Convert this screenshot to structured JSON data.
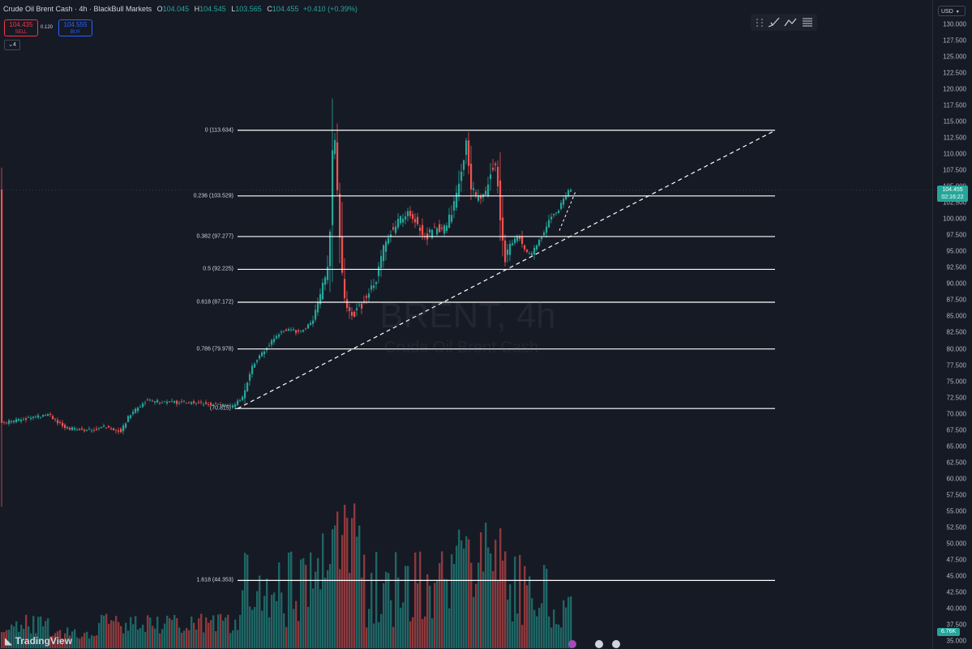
{
  "header": {
    "symbol": "Crude Oil Brent Cash · 4h · BlackBull Markets",
    "o_label": "O",
    "o_value": "104.045",
    "h_label": "H",
    "h_value": "104.545",
    "l_label": "L",
    "l_value": "103.565",
    "c_label": "C",
    "c_value": "104.455",
    "change": "+0.410 (+0.39%)"
  },
  "trade": {
    "sell_price": "104.435",
    "sell_label": "SELL",
    "spread": "0.120",
    "buy_price": "104.555",
    "buy_label": "BUY"
  },
  "indicators_count": "4",
  "currency": "USD",
  "watermark": {
    "symbol": "BRENT, 4h",
    "description": "Crude Oil Brent Cash"
  },
  "price_axis": {
    "ticks": [
      "130.000",
      "127.500",
      "125.000",
      "122.500",
      "120.000",
      "117.500",
      "115.000",
      "112.500",
      "110.000",
      "107.500",
      "105.000",
      "102.500",
      "100.000",
      "97.500",
      "95.000",
      "92.500",
      "90.000",
      "87.500",
      "85.000",
      "82.500",
      "80.000",
      "77.500",
      "75.000",
      "72.500",
      "70.000",
      "67.500",
      "65.000",
      "62.500",
      "60.000",
      "57.500",
      "55.000",
      "52.500",
      "50.000",
      "47.500",
      "45.000",
      "42.500",
      "40.000",
      "37.500",
      "35.000"
    ],
    "last_price": "104.455",
    "countdown": "02:16:22",
    "volume_label": "6.76K"
  },
  "fibonacci": [
    {
      "label": "0 (113.634)",
      "price": 113.634
    },
    {
      "label": "0.236 (103.529)",
      "price": 103.529
    },
    {
      "label": "0.382 (97.277)",
      "price": 97.277
    },
    {
      "label": "0.5 (92.225)",
      "price": 92.225
    },
    {
      "label": "0.618 (87.172)",
      "price": 87.172
    },
    {
      "label": "0.786 (79.978)",
      "price": 79.978
    },
    {
      "label": "(70.815)",
      "price": 70.815
    },
    {
      "label": "1.618 (44.353)",
      "price": 44.353
    }
  ],
  "trendline": {
    "from_price": 70.8,
    "to_price": 113.6
  },
  "brand": "TradingView",
  "colors": {
    "up": "#26a69a",
    "down": "#ef5350",
    "background": "#161a25",
    "fib_line": "#ffffff"
  }
}
